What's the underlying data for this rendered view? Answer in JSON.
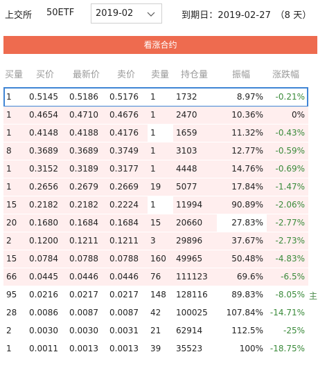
{
  "header": {
    "exchange": "上交所",
    "symbol": "50ETF",
    "month": "2019-02",
    "expiry_text": "到期日：2019-02-27　（8 天）"
  },
  "banner": {
    "label": "看涨合约"
  },
  "columns": [
    "买量",
    "买价",
    "最新价",
    "卖价",
    "卖量",
    "持仓量",
    "振幅",
    "涨跌幅"
  ],
  "colors": {
    "banner": "#ee6b4f",
    "in_the_money_row": "#ffeeee",
    "down": "#3a8a3a",
    "selected_border": "#3f84d4"
  },
  "rows": [
    {
      "bid_qty": "1",
      "bid": "0.5145",
      "last": "0.5186",
      "ask": "0.5176",
      "ask_qty": "1",
      "oi": "1732",
      "amp": "8.97%",
      "chg": "-0.21%",
      "itm": false,
      "selected": true,
      "blank": false
    },
    {
      "bid_qty": "1",
      "bid": "0.4654",
      "last": "0.4710",
      "ask": "0.4676",
      "ask_qty": "1",
      "oi": "2470",
      "amp": "10.36%",
      "chg": "0%",
      "itm": true,
      "selected": false,
      "blank": false
    },
    {
      "bid_qty": "1",
      "bid": "0.4148",
      "last": "0.4188",
      "ask": "0.4176",
      "ask_qty": "1",
      "oi": "1659",
      "amp": "11.32%",
      "chg": "-0.43%",
      "itm": true,
      "selected": false,
      "blank": true
    },
    {
      "bid_qty": "8",
      "bid": "0.3689",
      "last": "0.3689",
      "ask": "0.3749",
      "ask_qty": "1",
      "oi": "3103",
      "amp": "12.77%",
      "chg": "-0.59%",
      "itm": true,
      "selected": false,
      "blank": false
    },
    {
      "bid_qty": "1",
      "bid": "0.3152",
      "last": "0.3189",
      "ask": "0.3177",
      "ask_qty": "1",
      "oi": "4448",
      "amp": "14.76%",
      "chg": "-0.69%",
      "itm": true,
      "selected": false,
      "blank": false
    },
    {
      "bid_qty": "1",
      "bid": "0.2656",
      "last": "0.2679",
      "ask": "0.2669",
      "ask_qty": "19",
      "oi": "5077",
      "amp": "17.84%",
      "chg": "-1.47%",
      "itm": true,
      "selected": false,
      "blank": false
    },
    {
      "bid_qty": "15",
      "bid": "0.2182",
      "last": "0.2182",
      "ask": "0.2224",
      "ask_qty": "1",
      "oi": "11994",
      "amp": "90.89%",
      "chg": "-2.06%",
      "itm": true,
      "selected": false,
      "blank": true
    },
    {
      "bid_qty": "20",
      "bid": "0.1680",
      "last": "0.1684",
      "ask": "0.1684",
      "ask_qty": "15",
      "oi": "20660",
      "amp": "27.83%",
      "chg": "-2.77%",
      "itm": true,
      "selected": false,
      "blank": false,
      "amp_blank": true
    },
    {
      "bid_qty": "2",
      "bid": "0.1200",
      "last": "0.1211",
      "ask": "0.1211",
      "ask_qty": "3",
      "oi": "29896",
      "amp": "37.67%",
      "chg": "-2.73%",
      "itm": true,
      "selected": false,
      "blank": false
    },
    {
      "bid_qty": "15",
      "bid": "0.0784",
      "last": "0.0788",
      "ask": "0.0788",
      "ask_qty": "160",
      "oi": "49965",
      "amp": "50.48%",
      "chg": "-4.83%",
      "itm": true,
      "selected": false,
      "blank": false
    },
    {
      "bid_qty": "66",
      "bid": "0.0445",
      "last": "0.0446",
      "ask": "0.0446",
      "ask_qty": "76",
      "oi": "111123",
      "amp": "69.6%",
      "chg": "-6.5%",
      "itm": true,
      "selected": false,
      "blank": false
    },
    {
      "bid_qty": "95",
      "bid": "0.0216",
      "last": "0.0217",
      "ask": "0.0217",
      "ask_qty": "148",
      "oi": "128116",
      "amp": "89.83%",
      "chg": "-8.05%",
      "itm": false,
      "selected": false,
      "blank": false,
      "mark": "主"
    },
    {
      "bid_qty": "28",
      "bid": "0.0086",
      "last": "0.0087",
      "ask": "0.0087",
      "ask_qty": "42",
      "oi": "100025",
      "amp": "107.84%",
      "chg": "-14.71%",
      "itm": false,
      "selected": false,
      "blank": false
    },
    {
      "bid_qty": "2",
      "bid": "0.0030",
      "last": "0.0030",
      "ask": "0.0031",
      "ask_qty": "21",
      "oi": "62914",
      "amp": "112.5%",
      "chg": "-25%",
      "itm": false,
      "selected": false,
      "blank": false
    },
    {
      "bid_qty": "1",
      "bid": "0.0011",
      "last": "0.0013",
      "ask": "0.0013",
      "ask_qty": "39",
      "oi": "35523",
      "amp": "100%",
      "chg": "-18.75%",
      "itm": false,
      "selected": false,
      "blank": false
    }
  ]
}
